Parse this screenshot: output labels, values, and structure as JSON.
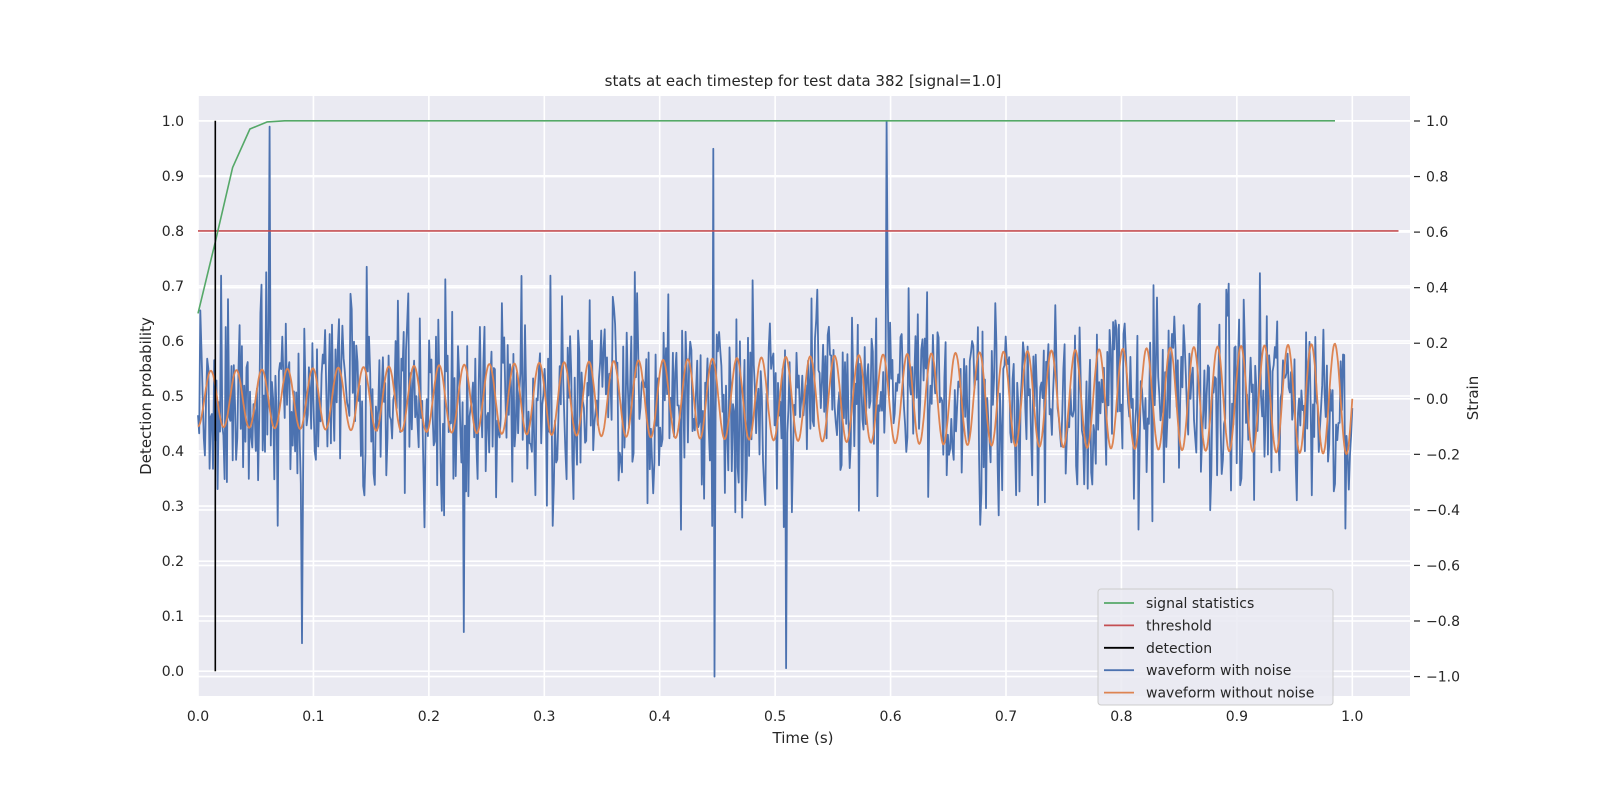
{
  "chart_data": {
    "type": "line",
    "title": "stats at each timestep for test data 382 [signal=1.0]",
    "xlabel": "Time (s)",
    "ylabel_left": "Detection probability",
    "ylabel_right": "Strain",
    "xlim": [
      0.0,
      1.05
    ],
    "ylim_left": [
      -0.045,
      1.045
    ],
    "ylim_right": [
      -1.07,
      1.09
    ],
    "x_ticks": [
      "0.0",
      "0.1",
      "0.2",
      "0.3",
      "0.4",
      "0.5",
      "0.6",
      "0.7",
      "0.8",
      "0.9",
      "1.0"
    ],
    "y_left_ticks": [
      "0.0",
      "0.1",
      "0.2",
      "0.3",
      "0.4",
      "0.5",
      "0.6",
      "0.7",
      "0.8",
      "0.9",
      "1.0"
    ],
    "y_right_ticks": [
      "−1.0",
      "−0.8",
      "−0.6",
      "−0.4",
      "−0.2",
      "0.0",
      "0.2",
      "0.4",
      "0.6",
      "0.8",
      "1.0"
    ],
    "grid": true,
    "legend_position": "lower-right",
    "series": [
      {
        "name": "signal statistics",
        "axis": "left",
        "color": "#55a868",
        "x": [
          0.0,
          0.015,
          0.03,
          0.045,
          0.06,
          0.075,
          0.1,
          0.2,
          0.4,
          0.6,
          0.8,
          0.985
        ],
        "y": [
          0.65,
          0.78,
          0.915,
          0.985,
          0.998,
          1.0,
          1.0,
          1.0,
          1.0,
          1.0,
          1.0,
          1.0
        ]
      },
      {
        "name": "threshold",
        "axis": "left",
        "color": "#c44e52",
        "x": [
          0.0,
          1.04
        ],
        "y": [
          0.8,
          0.8
        ]
      },
      {
        "name": "detection",
        "axis": "left",
        "color": "#000000",
        "x": [
          0.015,
          0.015
        ],
        "y": [
          0.0,
          1.0
        ]
      },
      {
        "name": "waveform with noise",
        "axis": "right",
        "color": "#4c72b0",
        "x_range": [
          0.0,
          1.0
        ],
        "n_points": 1000,
        "amplitude_range": [
          -1.0,
          1.0
        ],
        "peaks": [
          {
            "x": 0.062,
            "y": 0.98
          },
          {
            "x": 0.446,
            "y": 0.9
          },
          {
            "x": 0.447,
            "y": -1.0
          },
          {
            "x": 0.597,
            "y": 1.0
          },
          {
            "x": 0.51,
            "y": -0.97
          },
          {
            "x": 0.09,
            "y": -0.88
          },
          {
            "x": 0.23,
            "y": -0.84
          }
        ]
      },
      {
        "name": "waveform without noise",
        "axis": "right",
        "color": "#dd8452",
        "x_range": [
          0.0,
          1.0
        ],
        "cycles": 45,
        "amplitude_start": 0.1,
        "amplitude_end": 0.2
      }
    ]
  }
}
